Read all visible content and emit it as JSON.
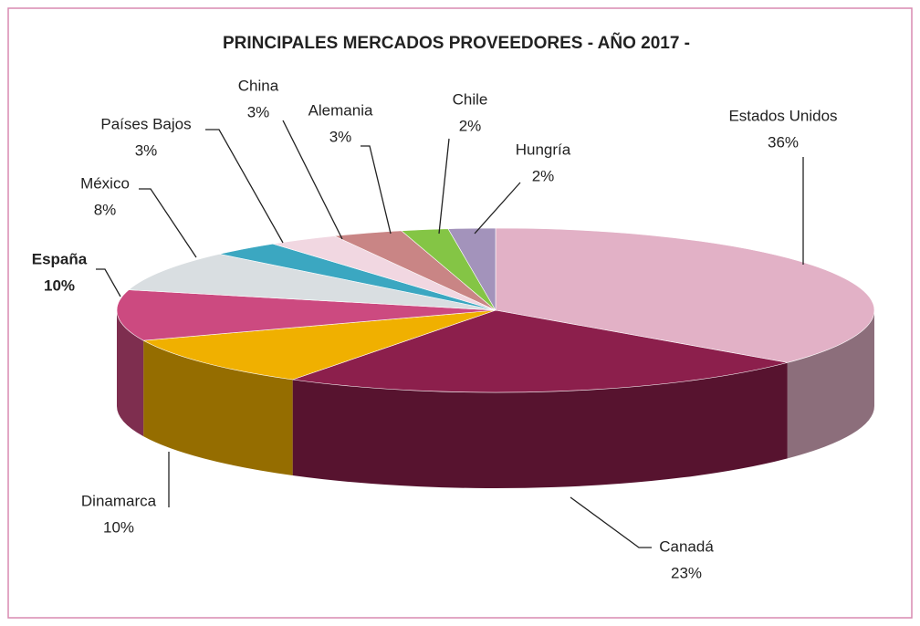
{
  "chart_data": {
    "type": "pie3d",
    "title": "PRINCIPALES MERCADOS PROVEEDORES - AÑO 2017 -",
    "categories": [
      "Estados Unidos",
      "Canadá",
      "Dinamarca",
      "España",
      "México",
      "Países Bajos",
      "China",
      "Alemania",
      "Chile",
      "Hungría"
    ],
    "values": [
      36,
      23,
      10,
      10,
      8,
      3,
      3,
      3,
      2,
      2
    ],
    "value_labels": [
      "36%",
      "23%",
      "10%",
      "10%",
      "8%",
      "3%",
      "3%",
      "3%",
      "2%",
      "2%"
    ],
    "colors": [
      "#e2b1c6",
      "#8c1f4c",
      "#f0b000",
      "#cc4a80",
      "#d9dee1",
      "#3ba7c1",
      "#f1d7e1",
      "#c98585",
      "#84c545",
      "#a393bb"
    ],
    "highlight": {
      "index": 3,
      "color": "#d4508a"
    }
  }
}
